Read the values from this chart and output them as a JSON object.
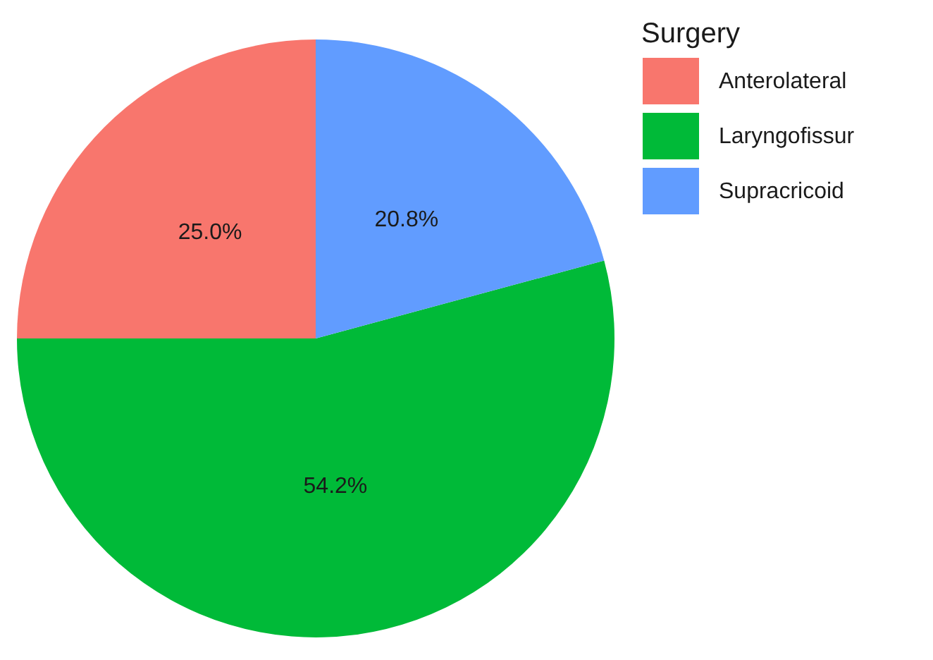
{
  "chart_data": {
    "type": "pie",
    "legend_title": "Surgery",
    "categories": [
      "Anterolateral",
      "Laryngofissur",
      "Supracricoid"
    ],
    "values": [
      25.0,
      54.2,
      20.8
    ],
    "colors": [
      "#f8766d",
      "#00ba38",
      "#619cff"
    ],
    "value_labels": [
      "25.0%",
      "54.2%",
      "20.8%"
    ],
    "legend": "right"
  }
}
